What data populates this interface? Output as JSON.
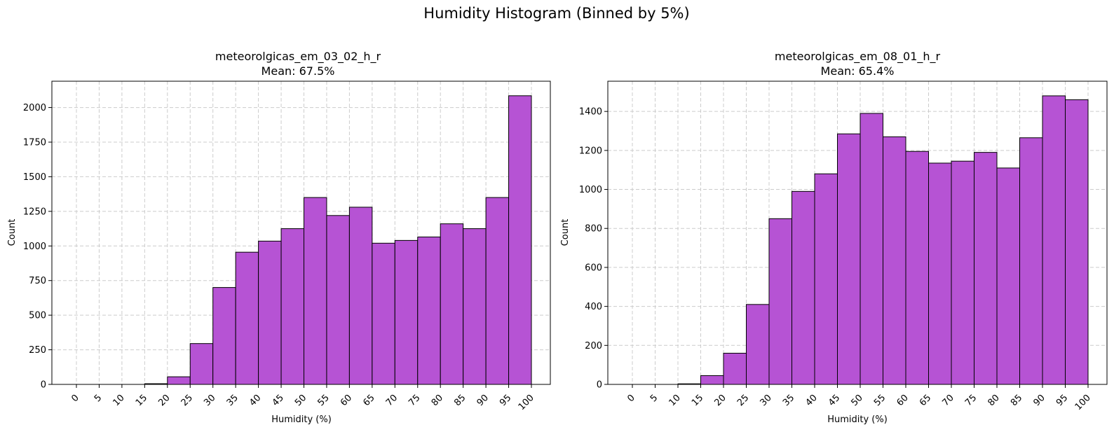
{
  "figure": {
    "suptitle": "Humidity Histogram (Binned by 5%)"
  },
  "style": {
    "bar_color": "#b653d4",
    "bar_edge": "#000000",
    "grid_color": "#cccccc"
  },
  "chart_data": [
    {
      "type": "bar",
      "title": "meteorolgicas_em_03_02_h_r",
      "subtitle": "Mean: 67.5%",
      "xlabel": "Humidity (%)",
      "ylabel": "Count",
      "bin_edges": [
        0,
        5,
        10,
        15,
        20,
        25,
        30,
        35,
        40,
        45,
        50,
        55,
        60,
        65,
        70,
        75,
        80,
        85,
        90,
        95,
        100
      ],
      "values": [
        0,
        0,
        0,
        5,
        55,
        295,
        700,
        955,
        1035,
        1125,
        1350,
        1220,
        1280,
        1020,
        1040,
        1065,
        1160,
        1125,
        1350,
        2085
      ],
      "xticks": [
        "0",
        "5",
        "10",
        "15",
        "20",
        "25",
        "30",
        "35",
        "40",
        "45",
        "50",
        "55",
        "60",
        "65",
        "70",
        "75",
        "80",
        "85",
        "90",
        "95",
        "100"
      ],
      "yticks": [
        0,
        250,
        500,
        750,
        1000,
        1250,
        1500,
        1750,
        2000
      ],
      "ylim": [
        0,
        2190
      ],
      "grid": true
    },
    {
      "type": "bar",
      "title": "meteorolgicas_em_08_01_h_r",
      "subtitle": "Mean: 65.4%",
      "xlabel": "Humidity (%)",
      "ylabel": "Count",
      "bin_edges": [
        0,
        5,
        10,
        15,
        20,
        25,
        30,
        35,
        40,
        45,
        50,
        55,
        60,
        65,
        70,
        75,
        80,
        85,
        90,
        95,
        100
      ],
      "values": [
        0,
        0,
        3,
        45,
        160,
        410,
        850,
        990,
        1080,
        1285,
        1390,
        1270,
        1195,
        1135,
        1145,
        1190,
        1110,
        1265,
        1480,
        1460
      ],
      "xticks": [
        "0",
        "5",
        "10",
        "15",
        "20",
        "25",
        "30",
        "35",
        "40",
        "45",
        "50",
        "55",
        "60",
        "65",
        "70",
        "75",
        "80",
        "85",
        "90",
        "95",
        "100"
      ],
      "yticks": [
        0,
        200,
        400,
        600,
        800,
        1000,
        1200,
        1400
      ],
      "ylim": [
        0,
        1555
      ],
      "grid": true
    }
  ]
}
